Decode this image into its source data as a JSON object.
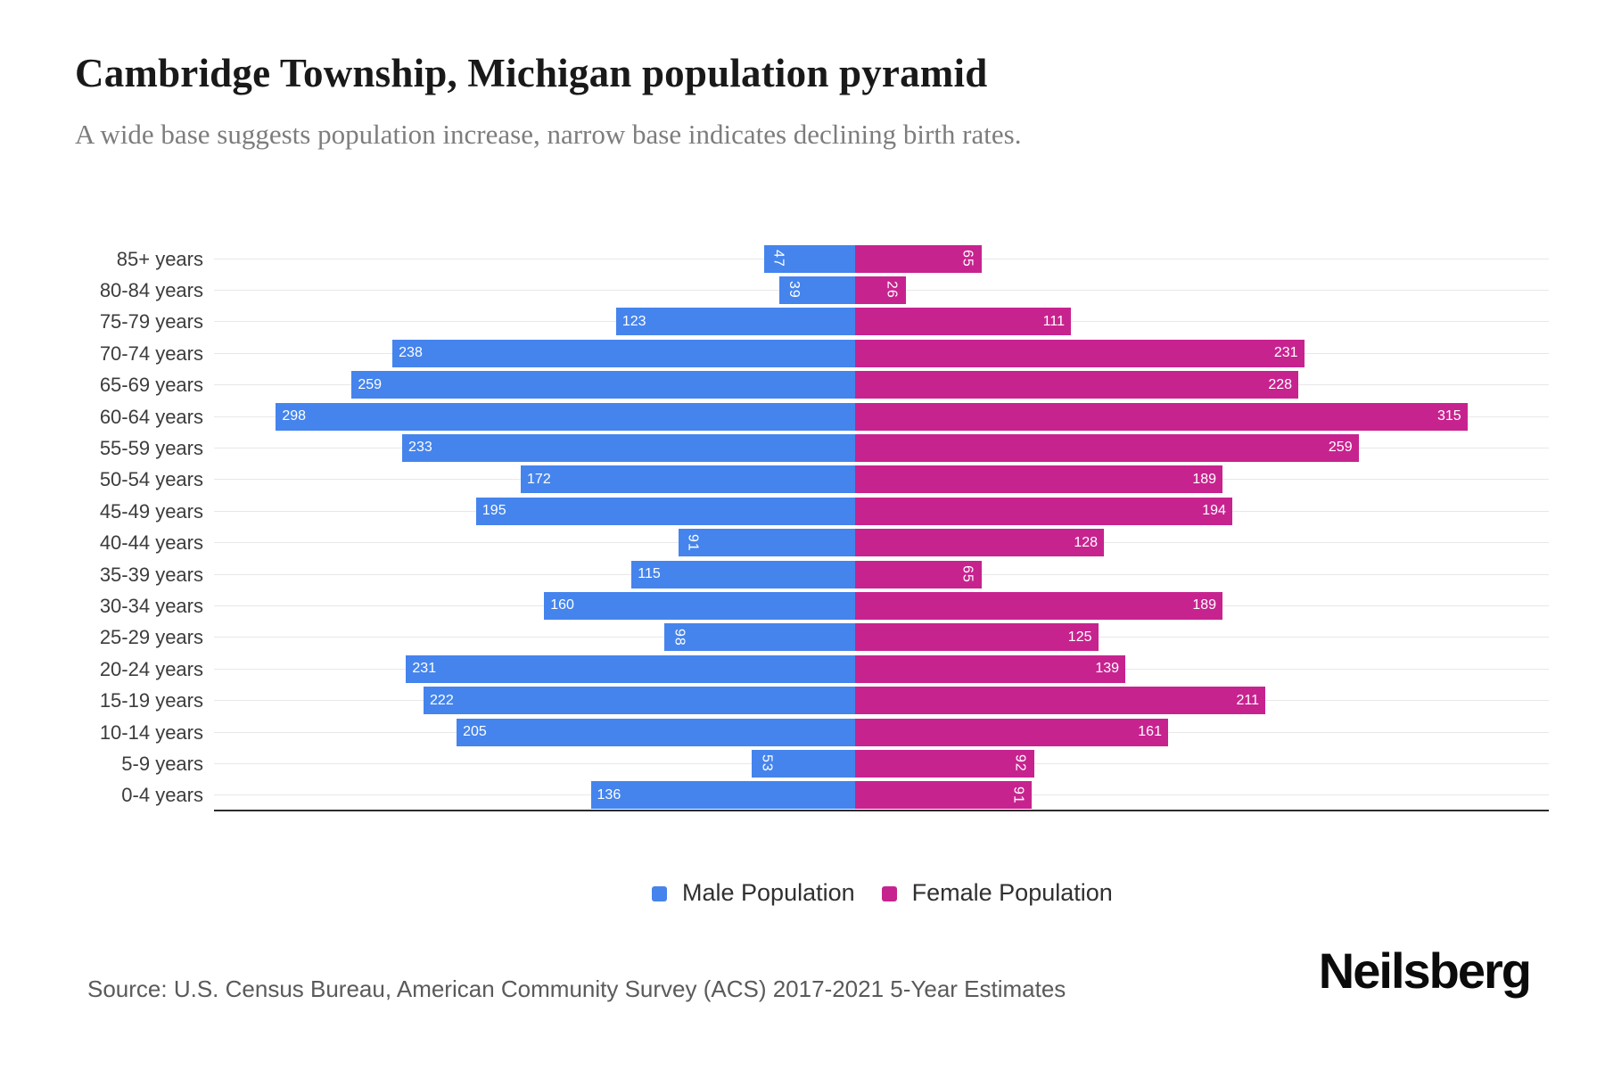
{
  "header": {
    "title": "Cambridge Township, Michigan population pyramid",
    "subtitle": "A wide base suggests population increase, narrow base indicates declining birth rates."
  },
  "colors": {
    "male": "#4584EC",
    "female": "#C7238F",
    "gridline": "#e8e8e8",
    "axis": "#2b2b2b"
  },
  "legend": {
    "male_label": "Male Population",
    "female_label": "Female Population"
  },
  "footer": {
    "source": "Source: U.S. Census Bureau, American Community Survey (ACS) 2017-2021 5-Year Estimates",
    "brand": "Neilsberg"
  },
  "chart_data": {
    "type": "bar",
    "variant": "population-pyramid",
    "orientation": "horizontal",
    "title": "Cambridge Township, Michigan population pyramid",
    "categories": [
      "85+ years",
      "80-84 years",
      "75-79 years",
      "70-74 years",
      "65-69 years",
      "60-64 years",
      "55-59 years",
      "50-54 years",
      "45-49 years",
      "40-44 years",
      "35-39 years",
      "30-34 years",
      "25-29 years",
      "20-24 years",
      "15-19 years",
      "10-14 years",
      "5-9 years",
      "0-4 years"
    ],
    "series": [
      {
        "name": "Male Population",
        "side": "left",
        "values": [
          47,
          39,
          123,
          238,
          259,
          298,
          233,
          172,
          195,
          91,
          115,
          160,
          98,
          231,
          222,
          205,
          53,
          136
        ]
      },
      {
        "name": "Female Population",
        "side": "right",
        "values": [
          65,
          26,
          111,
          231,
          228,
          315,
          259,
          189,
          194,
          128,
          65,
          189,
          125,
          139,
          211,
          161,
          92,
          91
        ]
      }
    ],
    "value_labels": "inside-bar-ends",
    "xlim": [
      -330,
      357
    ],
    "grid": "horizontal-category-lines",
    "legend_position": "bottom-center"
  }
}
